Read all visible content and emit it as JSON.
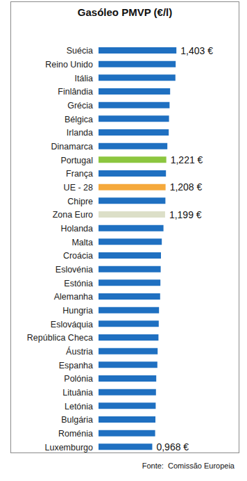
{
  "chart_data": {
    "type": "bar",
    "title": "Gasóleo PMVP (€/l)",
    "source": "Fonte:  Comissão Europeia",
    "orientation": "horizontal",
    "categories": [
      "Suécia",
      "Reino Unido",
      "Itália",
      "Finlândia",
      "Grécia",
      "Bélgica",
      "Irlanda",
      "Dinamarca",
      "Portugal",
      "França",
      "UE - 28",
      "Chipre",
      "Zona Euro",
      "Holanda",
      "Malta",
      "Croácia",
      "Eslovénia",
      "Estónia",
      "Alemanha",
      "Hungria",
      "Eslováquia",
      "República Checa",
      "Áustria",
      "Espanha",
      "Polónia",
      "Lituânia",
      "Letónia",
      "Bulgária",
      "Roménia",
      "Luxemburgo"
    ],
    "values": [
      1.403,
      1.39,
      1.385,
      1.29,
      1.28,
      1.27,
      1.265,
      1.24,
      1.221,
      1.215,
      1.208,
      1.205,
      1.199,
      1.17,
      1.14,
      1.125,
      1.12,
      1.115,
      1.11,
      1.09,
      1.085,
      1.08,
      1.065,
      1.06,
      1.04,
      1.035,
      1.03,
      1.025,
      1.02,
      0.968
    ],
    "value_labels": [
      "1,403 €",
      null,
      null,
      null,
      null,
      null,
      null,
      null,
      "1,221 €",
      null,
      "1,208 €",
      null,
      "1,199 €",
      null,
      null,
      null,
      null,
      null,
      null,
      null,
      null,
      null,
      null,
      null,
      null,
      null,
      null,
      null,
      null,
      "0,968 €"
    ],
    "colors": [
      "#1f70c1",
      "#1f70c1",
      "#1f70c1",
      "#1f70c1",
      "#1f70c1",
      "#1f70c1",
      "#1f70c1",
      "#1f70c1",
      "#8cc63f",
      "#1f70c1",
      "#f5a93c",
      "#1f70c1",
      "#dcdfc8",
      "#1f70c1",
      "#1f70c1",
      "#1f70c1",
      "#1f70c1",
      "#1f70c1",
      "#1f70c1",
      "#1f70c1",
      "#1f70c1",
      "#1f70c1",
      "#1f70c1",
      "#1f70c1",
      "#1f70c1",
      "#1f70c1",
      "#1f70c1",
      "#1f70c1",
      "#1f70c1",
      "#1f70c1"
    ],
    "xlim": [
      0,
      1.6
    ],
    "data_labels": true,
    "tick_labels": "y",
    "grid": false
  }
}
